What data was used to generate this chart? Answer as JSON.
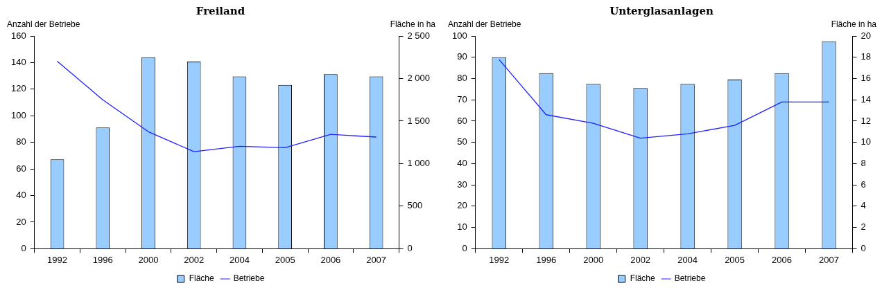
{
  "chart_data": [
    {
      "type": "bar",
      "title": "Freiland",
      "ylabel": "Anzahl der Betriebe",
      "y2label": "Fläche in ha",
      "categories": [
        "1992",
        "1996",
        "2000",
        "2002",
        "2004",
        "2005",
        "2006",
        "2007"
      ],
      "series": [
        {
          "name": "Fläche",
          "axis": "y2",
          "color": "#99ccff",
          "values": [
            1050,
            1425,
            2250,
            2200,
            2025,
            1925,
            2050,
            2025
          ]
        },
        {
          "name": "Betriebe",
          "type": "line",
          "axis": "y",
          "color": "#2020ff",
          "values": [
            141,
            112,
            88,
            73,
            77,
            76,
            86,
            84
          ]
        }
      ],
      "ylim": [
        0,
        160
      ],
      "yticks": [
        0,
        20,
        40,
        60,
        80,
        100,
        120,
        140,
        160
      ],
      "y2lim": [
        0,
        2500
      ],
      "y2ticks": [
        0,
        500,
        {
          "value": 1000,
          "label": "1 000"
        },
        {
          "value": 1500,
          "label": "1 500"
        },
        {
          "value": 2000,
          "label": "2 000"
        },
        {
          "value": 2500,
          "label": "2 500"
        }
      ],
      "grid": false,
      "legend": "bottom",
      "marker": "none"
    },
    {
      "type": "bar",
      "title": "Unterglasanlagen",
      "ylabel": "Anzahl der Betriebe",
      "y2label": "Fläche in ha",
      "categories": [
        "1992",
        "1996",
        "2000",
        "2002",
        "2004",
        "2005",
        "2006",
        "2007"
      ],
      "series": [
        {
          "name": "Fläche",
          "axis": "y2",
          "color": "#99ccff",
          "values": [
            18.0,
            16.5,
            15.5,
            15.1,
            15.5,
            15.9,
            16.5,
            19.5
          ]
        },
        {
          "name": "Betriebe",
          "type": "line",
          "axis": "y",
          "color": "#2020ff",
          "values": [
            89,
            63,
            59,
            52,
            54,
            58,
            69,
            69
          ]
        }
      ],
      "ylim": [
        0,
        100
      ],
      "yticks": [
        0,
        10,
        20,
        30,
        40,
        50,
        60,
        70,
        80,
        90,
        100
      ],
      "y2lim": [
        0,
        20
      ],
      "y2ticks": [
        0,
        2,
        4,
        6,
        8,
        10,
        12,
        14,
        16,
        18,
        20
      ],
      "grid": false,
      "legend": "bottom",
      "marker": "none"
    }
  ]
}
